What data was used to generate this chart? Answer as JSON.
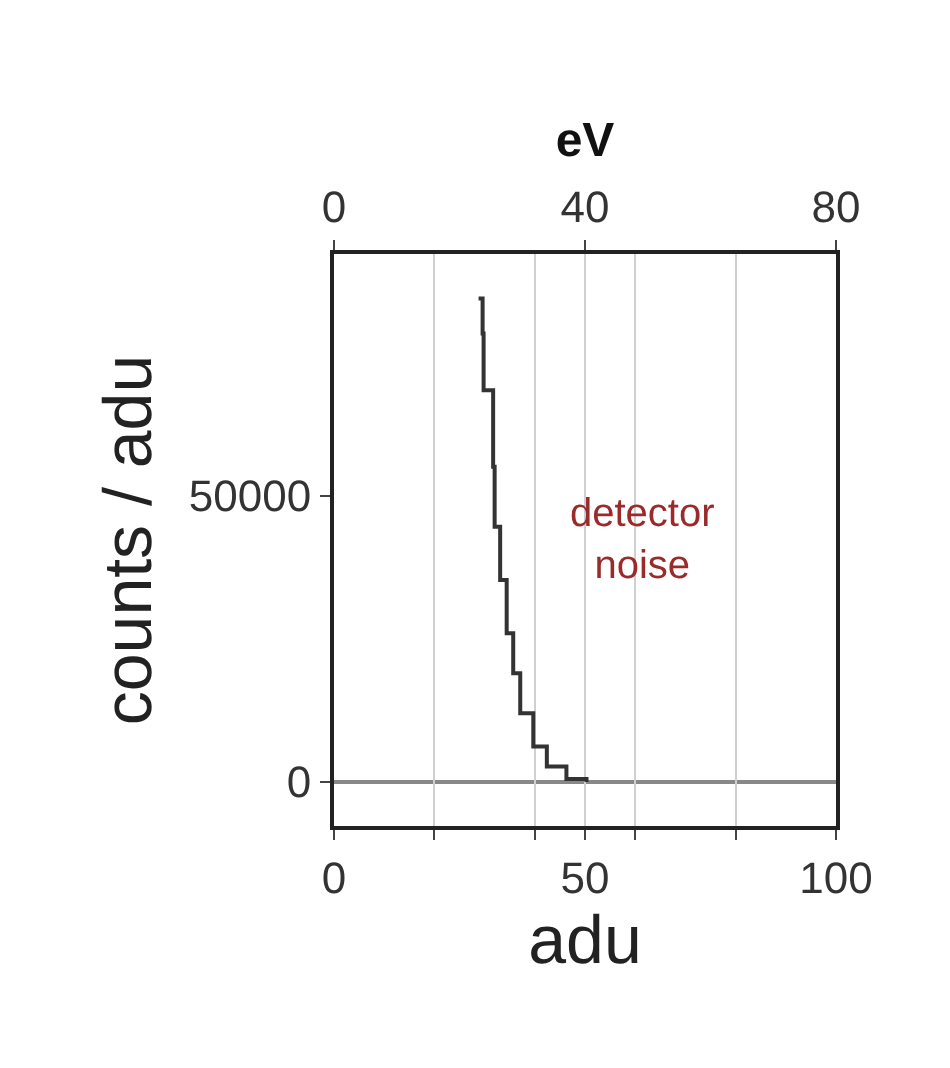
{
  "chart_data": {
    "type": "step",
    "xlabel": "adu",
    "ylabel": "counts / adu",
    "x2label": "eV",
    "x": [
      28.8,
      29.6,
      29.8,
      31.7,
      32.0,
      33.1,
      34.4,
      35.7,
      37.1,
      39.7,
      42.4,
      46.3,
      50.3
    ],
    "series": [
      {
        "color": "#333333",
        "values": [
          84500,
          78400,
          68500,
          55100,
          44600,
          35300,
          26000,
          19000,
          12000,
          6200,
          2700,
          500,
          0
        ]
      }
    ],
    "xlim": [
      0,
      100
    ],
    "xticks": [
      0,
      {
        "value": 20,
        "label": null
      },
      {
        "value": 40,
        "label": null
      },
      50,
      {
        "value": 60,
        "label": null
      },
      {
        "value": 80,
        "label": null
      },
      100
    ],
    "x2lim": [
      0,
      80
    ],
    "x2ticks": [
      0,
      40,
      80
    ],
    "ylim": [
      -7700,
      92300
    ],
    "yticks": [
      0,
      50000
    ],
    "ref_lines": [
      {
        "axis": "y",
        "value": 0,
        "color": "#888888"
      }
    ],
    "annotations": [
      "detector\nnoise"
    ],
    "grid": "x",
    "line_style": "solid"
  }
}
